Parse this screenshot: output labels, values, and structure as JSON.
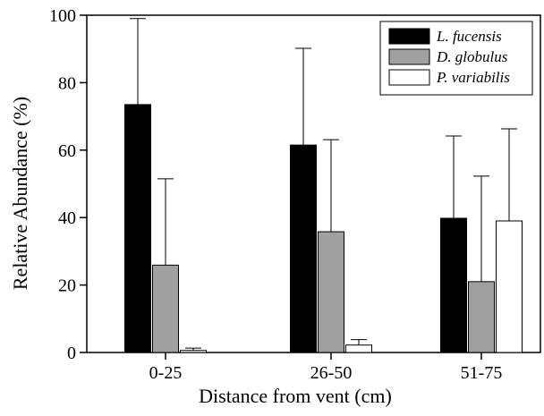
{
  "chart_data": {
    "type": "bar",
    "title": "",
    "xlabel": "Distance from vent (cm)",
    "ylabel": "Relative Abundance (%)",
    "categories": [
      "0-25",
      "26-50",
      "51-75"
    ],
    "ylim": [
      0,
      100
    ],
    "yticks": [
      "0",
      "20",
      "40",
      "60",
      "80",
      "100"
    ],
    "grid": false,
    "legend_position": "top-right",
    "error_bars": "upper",
    "series": [
      {
        "name": "L. fucensis",
        "color": "#000000",
        "values": [
          73.5,
          61.5,
          39.8
        ],
        "errors": [
          25.5,
          28.7,
          24.4
        ]
      },
      {
        "name": "D. globulus",
        "color": "#a0a0a0",
        "values": [
          25.9,
          35.8,
          21.0
        ],
        "errors": [
          25.6,
          27.3,
          31.3
        ]
      },
      {
        "name": "P. variabilis",
        "color": "#ffffff",
        "values": [
          0.6,
          2.2,
          39.0
        ],
        "errors": [
          0.7,
          1.6,
          27.3
        ]
      }
    ]
  }
}
